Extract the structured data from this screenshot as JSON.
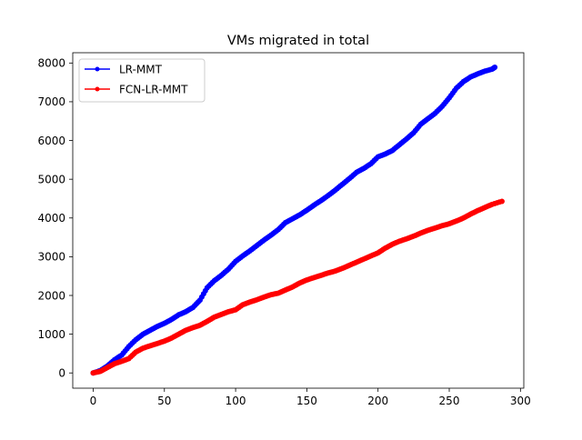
{
  "chart_data": {
    "type": "line",
    "title": "VMs migrated in total",
    "xlabel": "",
    "ylabel": "",
    "xlim": [
      -14.35,
      302.35
    ],
    "ylim": [
      -393.6,
      8265.6
    ],
    "xticks": [
      0,
      50,
      100,
      150,
      200,
      250,
      300
    ],
    "yticks": [
      0,
      1000,
      2000,
      3000,
      4000,
      5000,
      6000,
      7000,
      8000
    ],
    "xtick_labels": [
      "0",
      "50",
      "100",
      "150",
      "200",
      "250",
      "300"
    ],
    "ytick_labels": [
      "0",
      "1000",
      "2000",
      "3000",
      "4000",
      "5000",
      "6000",
      "7000",
      "8000"
    ],
    "grid": false,
    "legend_position": "upper left",
    "series": [
      {
        "name": "LR-MMT",
        "color": "#0000ff",
        "marker": "circle",
        "x": [
          0,
          5,
          10,
          15,
          20,
          25,
          30,
          35,
          40,
          45,
          50,
          55,
          60,
          65,
          70,
          75,
          80,
          85,
          90,
          95,
          100,
          105,
          110,
          115,
          120,
          125,
          130,
          135,
          140,
          145,
          150,
          155,
          160,
          165,
          170,
          175,
          180,
          185,
          190,
          195,
          200,
          205,
          210,
          215,
          220,
          225,
          230,
          235,
          240,
          245,
          250,
          255,
          260,
          265,
          270,
          275,
          280,
          282
        ],
        "y": [
          0,
          60,
          180,
          340,
          460,
          680,
          860,
          1000,
          1100,
          1200,
          1280,
          1380,
          1500,
          1580,
          1690,
          1880,
          2200,
          2380,
          2520,
          2680,
          2880,
          3020,
          3150,
          3290,
          3430,
          3560,
          3700,
          3880,
          3980,
          4080,
          4200,
          4330,
          4450,
          4580,
          4720,
          4870,
          5020,
          5180,
          5280,
          5400,
          5580,
          5650,
          5740,
          5890,
          6040,
          6200,
          6420,
          6560,
          6700,
          6880,
          7100,
          7350,
          7520,
          7640,
          7720,
          7790,
          7840,
          7890
        ]
      },
      {
        "name": "FCN-LR-MMT",
        "color": "#ff0000",
        "marker": "circle",
        "x": [
          0,
          5,
          10,
          15,
          20,
          25,
          30,
          35,
          40,
          45,
          50,
          55,
          60,
          65,
          70,
          75,
          80,
          85,
          90,
          95,
          100,
          105,
          110,
          115,
          120,
          125,
          130,
          135,
          140,
          145,
          150,
          155,
          160,
          165,
          170,
          175,
          180,
          185,
          190,
          195,
          200,
          205,
          210,
          215,
          220,
          225,
          230,
          235,
          240,
          245,
          250,
          255,
          260,
          265,
          270,
          275,
          280,
          287
        ],
        "y": [
          0,
          40,
          140,
          240,
          300,
          370,
          540,
          640,
          700,
          760,
          820,
          900,
          1000,
          1100,
          1170,
          1230,
          1330,
          1440,
          1510,
          1580,
          1630,
          1760,
          1830,
          1890,
          1960,
          2020,
          2060,
          2140,
          2220,
          2320,
          2400,
          2460,
          2520,
          2580,
          2630,
          2700,
          2780,
          2860,
          2940,
          3020,
          3100,
          3220,
          3320,
          3400,
          3460,
          3530,
          3610,
          3680,
          3740,
          3800,
          3850,
          3920,
          4000,
          4100,
          4190,
          4270,
          4350,
          4430
        ]
      }
    ]
  }
}
